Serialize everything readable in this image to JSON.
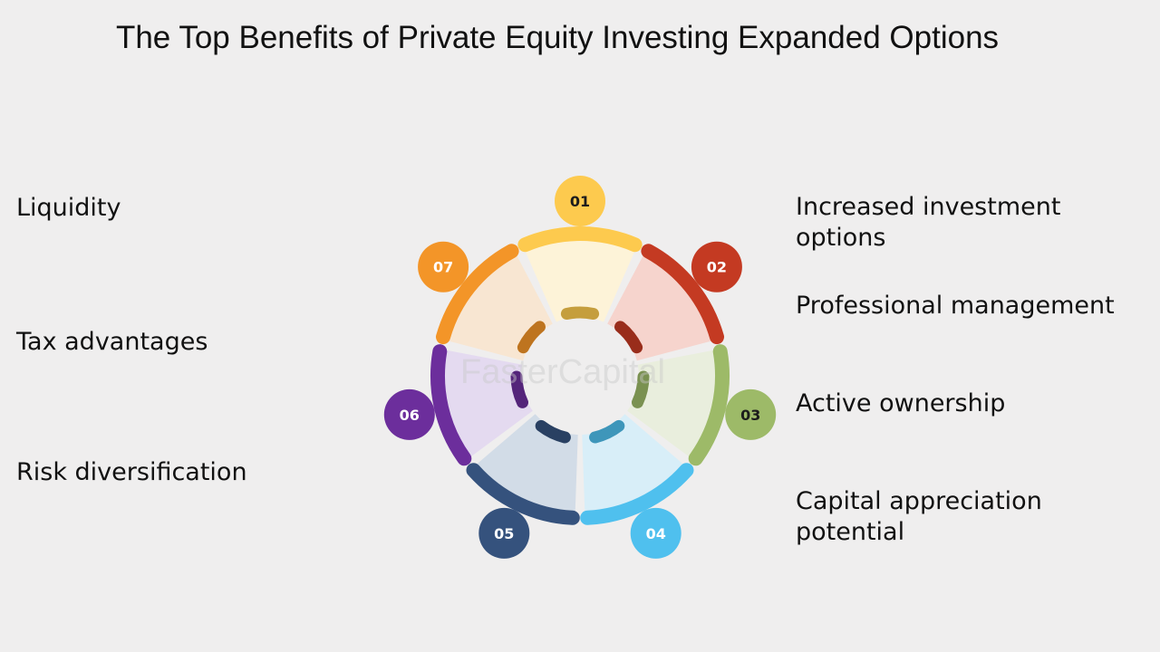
{
  "title": "The Top Benefits of Private Equity Investing Expanded Options",
  "watermark": "FasterCapital",
  "items": [
    {
      "num": "01",
      "label": "Increased investment options",
      "color": "#fdca4e",
      "fill": "#fdf3d8"
    },
    {
      "num": "02",
      "label": "Professional management",
      "color": "#c43a22",
      "fill": "#f6d4cd"
    },
    {
      "num": "03",
      "label": "Active ownership",
      "color": "#9dba68",
      "fill": "#e9eedd"
    },
    {
      "num": "04",
      "label": "Capital appreciation potential",
      "color": "#4fc0ee",
      "fill": "#d8eef8"
    },
    {
      "num": "05",
      "label": "Risk diversification",
      "color": "#35527d",
      "fill": "#d2dce7"
    },
    {
      "num": "06",
      "label": "Tax advantages",
      "color": "#6c2e9c",
      "fill": "#e4daf0"
    },
    {
      "num": "07",
      "label": "Liquidity",
      "color": "#f39528",
      "fill": "#f8e6d2"
    }
  ]
}
